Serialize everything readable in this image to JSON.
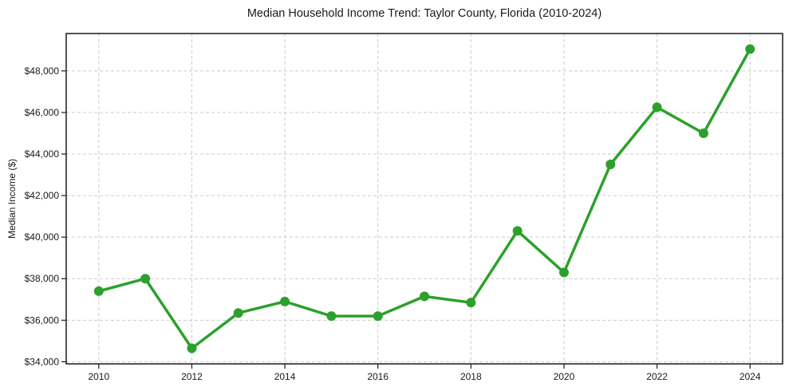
{
  "chart_data": {
    "type": "line",
    "title": "Median Household Income Trend: Taylor County, Florida (2010-2024)",
    "ylabel": "Median Income ($)",
    "xlabel": "",
    "series": [
      {
        "name": "Median Household Income",
        "x": [
          2010,
          2011,
          2012,
          2013,
          2014,
          2015,
          2016,
          2017,
          2018,
          2019,
          2020,
          2021,
          2022,
          2023,
          2024
        ],
        "values": [
          37400,
          38000,
          34650,
          36350,
          36900,
          36200,
          36200,
          37150,
          36850,
          40300,
          38300,
          43500,
          46250,
          45000,
          49050
        ]
      }
    ],
    "xlim": [
      2009.3,
      2024.7
    ],
    "ylim": [
      33900,
      49800
    ],
    "xticks": [
      2010,
      2012,
      2014,
      2016,
      2018,
      2020,
      2022,
      2024
    ],
    "xtick_labels": [
      "2010",
      "2012",
      "2014",
      "2016",
      "2018",
      "2020",
      "2022",
      "2024"
    ],
    "yticks": [
      34000,
      36000,
      38000,
      40000,
      42000,
      44000,
      46000,
      48000
    ],
    "ytick_labels": [
      "$34,000",
      "$36,000",
      "$38,000",
      "$40,000",
      "$42,000",
      "$44,000",
      "$46,000",
      "$48,000"
    ],
    "grid": "dashed, both axes",
    "legend": "none",
    "style": {
      "line_color": "#2ca02c",
      "marker": "circle",
      "marker_color": "#2ca02c",
      "grid_color": "#cccccc",
      "axis_color": "#1a1a1a",
      "text_color": "#1a1a1a",
      "background": "#ffffff"
    }
  }
}
